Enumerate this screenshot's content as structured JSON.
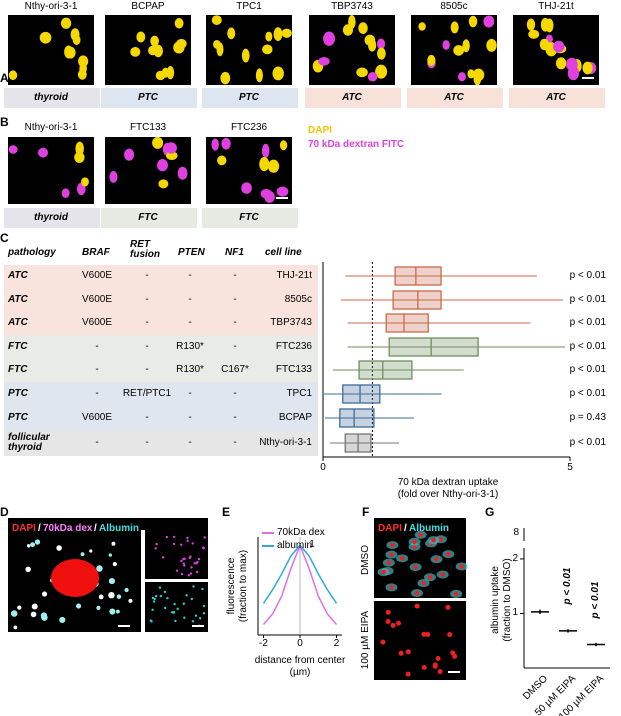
{
  "panel_a": {
    "label": "A",
    "tiles": [
      {
        "cell_line": "Nthy-ori-3-1",
        "group": "thyroid",
        "color": "#e4e4ea"
      },
      {
        "cell_line": "BCPAP",
        "group": "PTC",
        "color": "#dde5f0"
      },
      {
        "cell_line": "TPC1",
        "group": "PTC",
        "color": "#dde5f0"
      },
      {
        "cell_line": "TBP3743",
        "group": "ATC",
        "color": "#f8e1d8"
      },
      {
        "cell_line": "8505c",
        "group": "ATC",
        "color": "#f8e1d8"
      },
      {
        "cell_line": "THJ-21t",
        "group": "ATC",
        "color": "#f8e1d8"
      }
    ]
  },
  "panel_b": {
    "label": "B",
    "tiles": [
      {
        "cell_line": "Nthy-ori-3-1",
        "group": "thyroid",
        "color": "#e4e4ea"
      },
      {
        "cell_line": "FTC133",
        "group": "FTC",
        "color": "#e6eae2"
      },
      {
        "cell_line": "FTC236",
        "group": "FTC",
        "color": "#e6eae2"
      }
    ],
    "legend": [
      {
        "text": "DAPI",
        "color": "#f2c500"
      },
      {
        "text": "70 kDa dextran FITC",
        "color": "#e040e0"
      }
    ]
  },
  "panel_c": {
    "label": "C",
    "headers": [
      "pathology",
      "BRAF",
      "RET fusion",
      "PTEN",
      "NF1",
      "cell line"
    ],
    "rows": [
      {
        "cells": [
          "ATC",
          "V600E",
          "-",
          "-",
          "-",
          "THJ-21t"
        ],
        "bg": "#f8e4dc"
      },
      {
        "cells": [
          "ATC",
          "V600E",
          "-",
          "-",
          "-",
          "8505c"
        ],
        "bg": "#f8e4dc"
      },
      {
        "cells": [
          "ATC",
          "V600E",
          "-",
          "-",
          "-",
          "TBP3743"
        ],
        "bg": "#f8e4dc"
      },
      {
        "cells": [
          "FTC",
          "-",
          "-",
          "R130*",
          "-",
          "FTC236"
        ],
        "bg": "#e9ece6"
      },
      {
        "cells": [
          "FTC",
          "-",
          "-",
          "R130*",
          "C167*",
          "FTC133"
        ],
        "bg": "#e9ece6"
      },
      {
        "cells": [
          "PTC",
          "-",
          "RET/PTC1",
          "-",
          "-",
          "TPC1"
        ],
        "bg": "#dfe6f0"
      },
      {
        "cells": [
          "PTC",
          "V600E",
          "-",
          "-",
          "-",
          "BCPAP"
        ],
        "bg": "#dfe6f0"
      },
      {
        "cells": [
          "follicular thyroid",
          "-",
          "-",
          "-",
          "-",
          "Nthy-ori-3-1"
        ],
        "bg": "#e6e6e6"
      }
    ],
    "chart": {
      "type": "box",
      "xlabel": "70 kDa dextran uptake",
      "xlabel2": "(fold over Nthy-ori-3-1)",
      "xlim": [
        0,
        5
      ],
      "xticks": [
        0,
        5
      ],
      "reference_line": 1,
      "series": [
        {
          "name": "THJ-21t",
          "color": "#c86a4c",
          "min": 0.45,
          "q1": 1.46,
          "median": 1.88,
          "q3": 2.39,
          "max": 4.33,
          "p_label": "p < 0.01"
        },
        {
          "name": "8505c",
          "color": "#c86a4c",
          "min": 0.36,
          "q1": 1.42,
          "median": 1.92,
          "q3": 2.39,
          "max": 4.86,
          "p_label": "p < 0.01"
        },
        {
          "name": "TBP3743",
          "color": "#c86a4c",
          "min": 0.5,
          "q1": 1.28,
          "median": 1.64,
          "q3": 2.13,
          "max": 4.2,
          "p_label": "p < 0.01"
        },
        {
          "name": "FTC236",
          "color": "#6e8f5e",
          "min": 0.5,
          "q1": 1.34,
          "median": 2.19,
          "q3": 3.14,
          "max": 4.9,
          "p_label": "p < 0.01"
        },
        {
          "name": "FTC133",
          "color": "#6e8f5e",
          "min": 0.2,
          "q1": 0.73,
          "median": 1.21,
          "q3": 1.8,
          "max": 2.85,
          "p_label": "p < 0.01"
        },
        {
          "name": "TPC1",
          "color": "#3e6c9a",
          "min": 0.02,
          "q1": 0.4,
          "median": 0.75,
          "q3": 1.15,
          "max": 2.4,
          "p_label": "p < 0.01"
        },
        {
          "name": "BCPAP",
          "color": "#3e6c9a",
          "min": 0.04,
          "q1": 0.34,
          "median": 0.63,
          "q3": 1.03,
          "max": 1.84,
          "p_label": "p = 0.43"
        },
        {
          "name": "Nthy-ori-3-1",
          "color": "#777777",
          "min": 0.14,
          "q1": 0.45,
          "median": 0.71,
          "q3": 0.97,
          "max": 1.54,
          "p_label": "p < 0.01"
        }
      ]
    }
  },
  "panel_d": {
    "label": "D",
    "header": [
      "DAPI",
      "/",
      "70kDa dex",
      "/",
      "Albumin"
    ],
    "header_colors": [
      "#ff3030",
      "#ffffff",
      "#ff80ff",
      "#ffffff",
      "#40e0e0"
    ]
  },
  "panel_e": {
    "label": "E",
    "chart": {
      "type": "line",
      "ylabel": "fluorescence",
      "ylabel2": "(fraction to max)",
      "xlabel": "distance from center",
      "xlabel2": "(µm)",
      "peak_label": "1",
      "x": [
        -2,
        -1.5,
        -1,
        -0.5,
        0,
        0.5,
        1,
        1.5,
        2
      ],
      "xlim": [
        -2.3,
        2.3
      ],
      "xticks": [
        -2,
        0,
        2
      ],
      "ylim": [
        0.15,
        1.08
      ],
      "series": [
        {
          "name": "70kDa dex",
          "color": "#e070e0",
          "values": [
            0.25,
            0.35,
            0.52,
            0.78,
            1,
            0.78,
            0.52,
            0.35,
            0.25
          ]
        },
        {
          "name": "albumin",
          "color": "#30a8d8",
          "values": [
            0.45,
            0.58,
            0.73,
            0.9,
            1,
            0.9,
            0.73,
            0.58,
            0.45
          ]
        }
      ]
    }
  },
  "panel_f": {
    "label": "F",
    "header": [
      "DAPI",
      "/",
      "Albumin"
    ],
    "header_colors": [
      "#ff3030",
      "#ffffff",
      "#40e0e0"
    ],
    "rows": [
      "DMSO",
      "100 µM EIPA"
    ]
  },
  "panel_g": {
    "label": "G",
    "chart": {
      "type": "scatter-mean",
      "ylabel": "albumin uptake",
      "ylabel2": "(fraction to DMSO)",
      "categories": [
        "DMSO",
        "50 µM EIPA",
        "100 µM EIPA"
      ],
      "ylim": [
        0,
        2.2
      ],
      "yticks": [
        1,
        2
      ],
      "break_label": "8",
      "means": [
        1.03,
        0.68,
        0.43
      ],
      "errors": [
        0.04,
        0.03,
        0.03
      ],
      "p_labels": [
        null,
        "p < 0.01",
        "p < 0.01"
      ]
    }
  }
}
